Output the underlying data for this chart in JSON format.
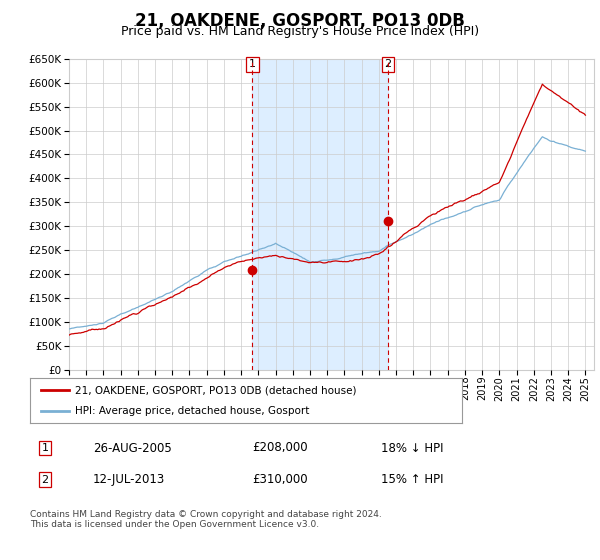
{
  "title": "21, OAKDENE, GOSPORT, PO13 0DB",
  "subtitle": "Price paid vs. HM Land Registry's House Price Index (HPI)",
  "ylim": [
    0,
    650000
  ],
  "yticks": [
    0,
    50000,
    100000,
    150000,
    200000,
    250000,
    300000,
    350000,
    400000,
    450000,
    500000,
    550000,
    600000,
    650000
  ],
  "xlim_start": 1995.0,
  "xlim_end": 2025.5,
  "line1_color": "#cc0000",
  "line2_color": "#7ab0d4",
  "shade_color": "#ddeeff",
  "transaction1_x": 2005.65,
  "transaction1_y": 208000,
  "transaction2_x": 2013.53,
  "transaction2_y": 310000,
  "legend_line1": "21, OAKDENE, GOSPORT, PO13 0DB (detached house)",
  "legend_line2": "HPI: Average price, detached house, Gosport",
  "table_row1_num": "1",
  "table_row1_date": "26-AUG-2005",
  "table_row1_price": "£208,000",
  "table_row1_hpi": "18% ↓ HPI",
  "table_row2_num": "2",
  "table_row2_date": "12-JUL-2013",
  "table_row2_price": "£310,000",
  "table_row2_hpi": "15% ↑ HPI",
  "footer": "Contains HM Land Registry data © Crown copyright and database right 2024.\nThis data is licensed under the Open Government Licence v3.0.",
  "bg_color": "#ffffff",
  "grid_color": "#cccccc"
}
